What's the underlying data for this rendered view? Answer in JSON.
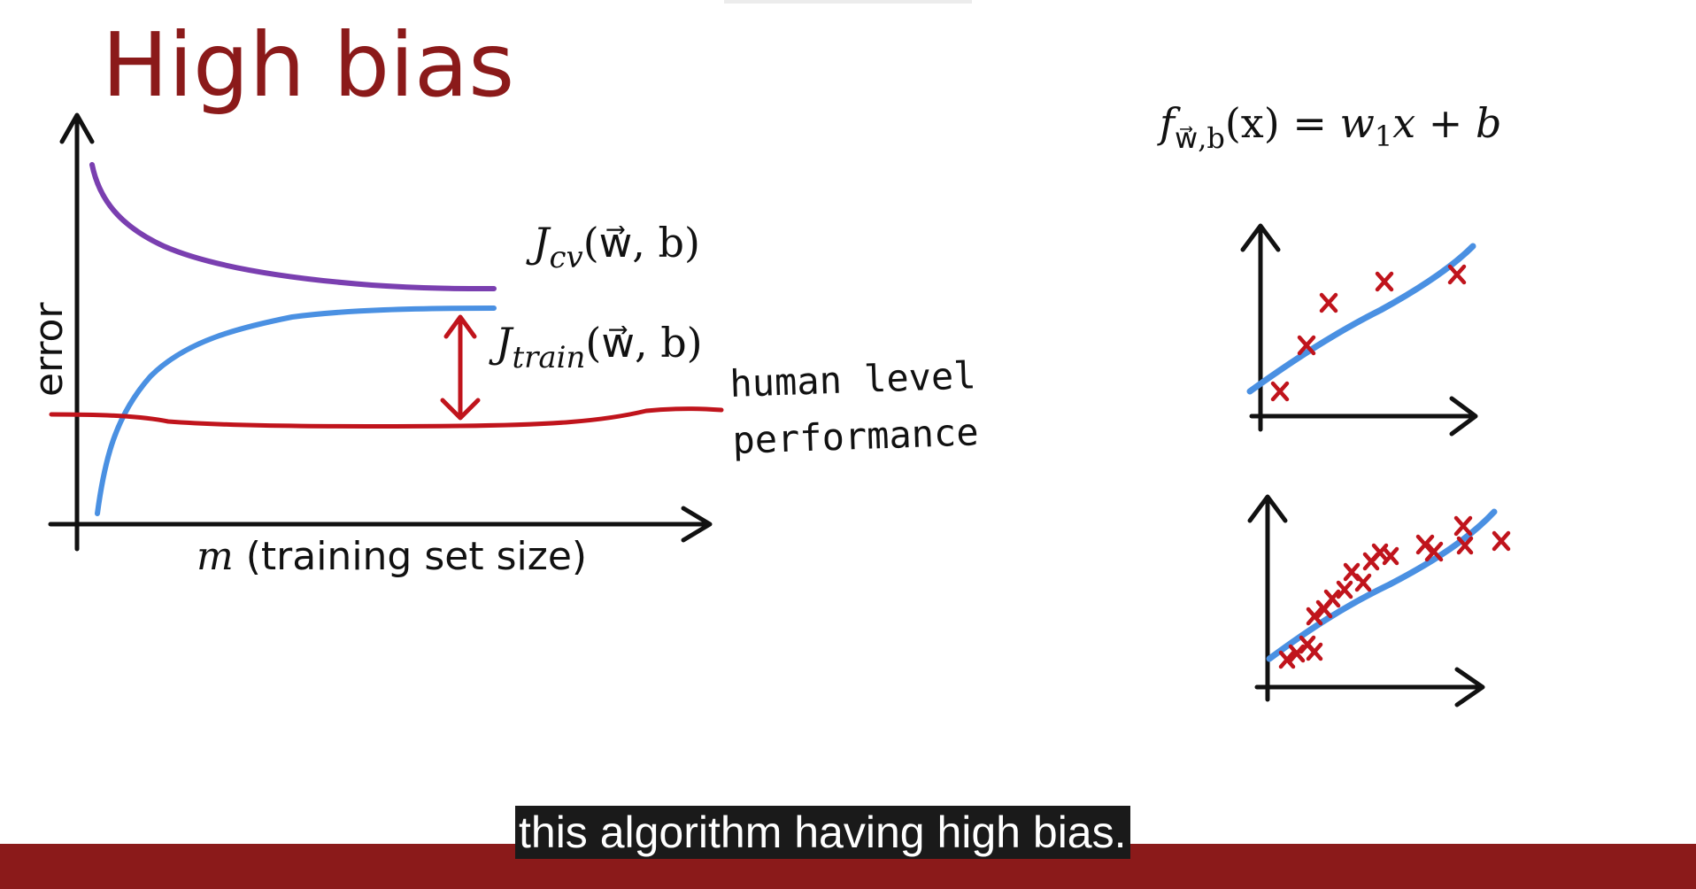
{
  "slide": {
    "title": "High bias",
    "colors": {
      "title": "#8b1a1a",
      "cv_curve": "#7a3fb0",
      "train_curve": "#4a90e2",
      "human_level": "#c0141c",
      "points": "#c0141c",
      "fit_line": "#4a90e2",
      "footer": "#8b1a1a"
    }
  },
  "learning_curve": {
    "y_axis_label": "error",
    "x_axis_label_var": "m",
    "x_axis_label_rest": "(training set size)",
    "cv_label_J": "J",
    "cv_label_sub": "cv",
    "cv_label_args": "(w⃗, b)",
    "train_label_J": "J",
    "train_label_sub": "train",
    "train_label_args": "(w⃗, b)",
    "human_level_line1": "human level",
    "human_level_line2": "performance"
  },
  "model": {
    "f": "f",
    "sub": "w⃗,b",
    "args": "(x)",
    "equals": " = ",
    "w": "w",
    "w_sub": "1",
    "rest": "x + b"
  },
  "subtitle": {
    "text": "this algorithm having high bias."
  }
}
